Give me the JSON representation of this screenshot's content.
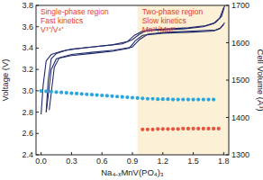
{
  "chart_data": {
    "type": "line",
    "x_label": "Na₄₋ₓMnV(PO₄)₃",
    "y_label": "Voltage (V)",
    "y2_label": "Cell Volume (Å³)",
    "xlim": [
      -0.05,
      1.85
    ],
    "xticks": [
      {
        "value": 0,
        "label": "0.0"
      },
      0.3,
      0.6,
      0.9,
      1.2,
      1.5,
      1.8
    ],
    "ylim": [
      2.4,
      3.8
    ],
    "yticks": [
      2.4,
      2.6,
      2.8,
      {
        "value": 3,
        "label": "3.0"
      },
      3.2,
      3.4,
      3.6,
      3.8
    ],
    "y2lim": [
      1300,
      1700
    ],
    "y2ticks": [
      1300,
      1400,
      1500,
      1600,
      1700
    ],
    "grid": false,
    "shaded_region": {
      "x": [
        0.95,
        1.85
      ],
      "color": "#fcf0d6"
    },
    "annotations": [
      {
        "lines": [
          "Single-phase region",
          "Fast kinetics",
          "V³⁺/V⁴⁺"
        ],
        "color": "#e03c31"
      },
      {
        "lines": [
          "Two-phase region",
          "Slow kinetics",
          "Mn²⁺/Mn³⁺"
        ],
        "color": "#e03c31"
      }
    ],
    "series": [
      {
        "type": "line",
        "color": "#1f2a6b",
        "x": [
          0,
          0.02,
          0.05,
          0.1,
          0.2,
          0.3,
          0.5,
          0.7,
          0.85,
          0.92,
          1.0,
          1.2,
          1.4,
          1.6,
          1.7,
          1.76,
          1.8
        ],
        "values": [
          2.78,
          3.05,
          3.28,
          3.34,
          3.37,
          3.39,
          3.41,
          3.43,
          3.46,
          3.52,
          3.56,
          3.57,
          3.58,
          3.6,
          3.63,
          3.68,
          3.78
        ]
      },
      {
        "type": "line",
        "color": "#1f2a6b",
        "x": [
          1.8,
          1.76,
          1.7,
          1.5,
          1.2,
          1.0,
          0.93,
          0.87,
          0.7,
          0.5,
          0.3,
          0.15,
          0.1,
          0.07,
          0.05
        ],
        "values": [
          3.62,
          3.58,
          3.56,
          3.55,
          3.54,
          3.52,
          3.47,
          3.4,
          3.37,
          3.35,
          3.33,
          3.3,
          3.2,
          2.95,
          2.8
        ]
      },
      {
        "type": "line",
        "color": "#1f2a6b",
        "x": [
          0.05,
          0.07,
          0.1,
          0.15,
          0.25,
          0.4,
          0.6,
          0.8,
          0.9,
          0.97,
          1.05,
          1.25,
          1.45,
          1.62,
          1.72,
          1.78,
          1.81
        ],
        "values": [
          2.8,
          3.1,
          3.3,
          3.35,
          3.38,
          3.4,
          3.42,
          3.44,
          3.48,
          3.53,
          3.57,
          3.58,
          3.59,
          3.61,
          3.64,
          3.7,
          3.8
        ]
      },
      {
        "type": "line",
        "color": "#1f2a6b",
        "x": [
          1.81,
          1.77,
          1.72,
          1.5,
          1.25,
          1.05,
          0.97,
          0.9,
          0.72,
          0.5,
          0.3,
          0.18,
          0.13,
          0.1,
          0.08
        ],
        "values": [
          3.64,
          3.59,
          3.57,
          3.56,
          3.55,
          3.53,
          3.48,
          3.41,
          3.38,
          3.36,
          3.34,
          3.31,
          3.22,
          2.98,
          2.82
        ]
      },
      {
        "type": "scatter",
        "axis": "y2",
        "marker": "circle",
        "color": "#2aa6de",
        "x": [
          0,
          0.05,
          0.1,
          0.15,
          0.2,
          0.25,
          0.3,
          0.35,
          0.4,
          0.45,
          0.5,
          0.55,
          0.6,
          0.65,
          0.7,
          0.75,
          0.8,
          0.85,
          0.9,
          0.95,
          1.0,
          1.05,
          1.1,
          1.15,
          1.2,
          1.25,
          1.3,
          1.35,
          1.4,
          1.45,
          1.5,
          1.55,
          1.6,
          1.65,
          1.7
        ],
        "values": [
          1471,
          1470,
          1469,
          1468,
          1467,
          1466,
          1465,
          1464,
          1463,
          1462,
          1461,
          1460,
          1459,
          1458,
          1457,
          1456,
          1455,
          1454,
          1453,
          1452,
          1451,
          1450,
          1450,
          1449,
          1449,
          1449,
          1448,
          1448,
          1448,
          1448,
          1448,
          1448,
          1448,
          1448,
          1448
        ]
      },
      {
        "type": "scatter",
        "axis": "y2",
        "marker": "circle",
        "color": "#e8533c",
        "x": [
          1.0,
          1.05,
          1.1,
          1.15,
          1.2,
          1.25,
          1.3,
          1.35,
          1.4,
          1.45,
          1.5,
          1.55,
          1.6,
          1.65,
          1.7,
          1.75
        ],
        "values": [
          1368,
          1368,
          1368,
          1369,
          1369,
          1369,
          1369,
          1369,
          1370,
          1370,
          1370,
          1370,
          1370,
          1370,
          1370,
          1370
        ]
      }
    ]
  }
}
